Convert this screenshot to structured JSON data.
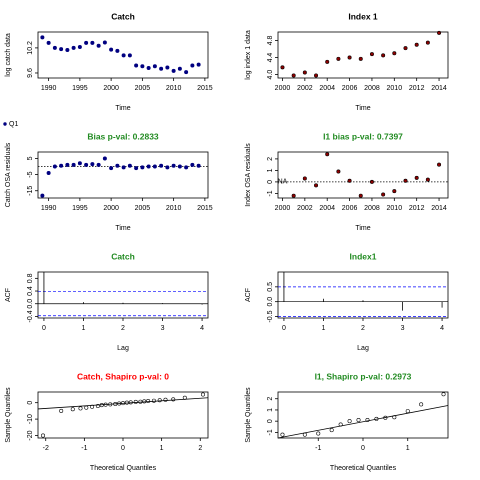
{
  "chart_data": [
    {
      "type": "scatter",
      "title": "Catch",
      "title_color": "#000000",
      "xlabel": "Time",
      "ylabel": "log catch data",
      "x": [
        1989,
        1990,
        1991,
        1992,
        1993,
        1994,
        1995,
        1996,
        1997,
        1998,
        1999,
        2000,
        2001,
        2002,
        2003,
        2004,
        2005,
        2006,
        2007,
        2008,
        2009,
        2010,
        2011,
        2012,
        2013,
        2014
      ],
      "series": [
        {
          "name": "Q1",
          "color": "#000080",
          "values": [
            10.45,
            10.32,
            10.2,
            10.17,
            10.15,
            10.2,
            10.22,
            10.32,
            10.32,
            10.25,
            10.33,
            10.16,
            10.13,
            10.02,
            10.02,
            9.78,
            9.76,
            9.72,
            9.76,
            9.7,
            9.73,
            9.65,
            9.7,
            9.62,
            9.78,
            9.8
          ]
        }
      ],
      "xlim": [
        1988.3,
        2015.5
      ],
      "ylim": [
        9.48,
        10.58
      ],
      "xticks": [
        1990,
        1995,
        2000,
        2005,
        2010,
        2015
      ],
      "yticks": [
        9.6,
        10.2
      ]
    },
    {
      "type": "scatter",
      "title": "Index 1",
      "title_color": "#000000",
      "xlabel": "Time",
      "ylabel": "log index 1 data",
      "x": [
        2000,
        2001,
        2002,
        2003,
        2004,
        2005,
        2006,
        2007,
        2008,
        2009,
        2010,
        2011,
        2012,
        2013,
        2014
      ],
      "values": [
        4.17,
        3.98,
        4.05,
        3.98,
        4.3,
        4.37,
        4.4,
        4.37,
        4.48,
        4.45,
        4.5,
        4.62,
        4.7,
        4.75,
        4.98
      ],
      "color": "#8b0000",
      "outline": "#000000",
      "xlim": [
        1999.6,
        2014.8
      ],
      "ylim": [
        3.92,
        5.0
      ],
      "xticks": [
        2000,
        2002,
        2004,
        2006,
        2008,
        2010,
        2012,
        2014
      ],
      "yticks": [
        {
          "value": 4.0,
          "label": "4.0"
        },
        4.4,
        4.8
      ]
    },
    {
      "type": "scatter",
      "title": "Bias p-val: 0.2833",
      "title_color": "#228b22",
      "xlabel": "Time",
      "ylabel": "Catch OSA residuals",
      "x": [
        1989,
        1990,
        1991,
        1992,
        1993,
        1994,
        1995,
        1996,
        1997,
        1998,
        1999,
        2000,
        2001,
        2002,
        2003,
        2004,
        2005,
        2006,
        2007,
        2008,
        2009,
        2010,
        2011,
        2012,
        2013,
        2014
      ],
      "values": [
        -18,
        -4,
        0,
        0.5,
        1,
        1,
        2,
        1,
        1.5,
        1,
        5,
        -1,
        0.5,
        -0.5,
        0.5,
        -1,
        -0.5,
        0,
        0,
        0.5,
        -0.5,
        0.5,
        0,
        -0.5,
        1,
        0.5
      ],
      "color": "#000080",
      "hline": 0,
      "xlim": [
        1988.3,
        2015.5
      ],
      "ylim": [
        -19.5,
        9
      ],
      "xticks": [
        1990,
        1995,
        2000,
        2005,
        2010,
        2015
      ],
      "yticks": [
        -15,
        -5,
        5
      ]
    },
    {
      "type": "scatter",
      "title": "I1 bias p-val: 0.7397",
      "title_color": "#228b22",
      "xlabel": "Time",
      "ylabel": "Index OSA residuals",
      "x": [
        2001,
        2002,
        2003,
        2004,
        2005,
        2006,
        2007,
        2008,
        2009,
        2010,
        2011,
        2012,
        2013,
        2014
      ],
      "values": [
        -1.2,
        0.3,
        -0.3,
        2.4,
        0.9,
        0.1,
        -1.2,
        0,
        -1.1,
        -0.8,
        0.1,
        0.35,
        0.2,
        1.5
      ],
      "color": "#8b0000",
      "outline": "#000000",
      "hline": 0,
      "annotations": [
        {
          "text": "NA",
          "x": 2000,
          "y": 0
        }
      ],
      "xlim": [
        1999.6,
        2014.8
      ],
      "ylim": [
        -1.4,
        2.6
      ],
      "xticks": [
        2000,
        2002,
        2004,
        2006,
        2008,
        2010,
        2012,
        2014
      ],
      "yticks": [
        -1,
        0,
        1,
        2
      ]
    },
    {
      "type": "bar",
      "title": "Catch",
      "title_color": "#228b22",
      "xlabel": "Lag",
      "ylabel": "ACF",
      "x": [
        0,
        1,
        2,
        3,
        4
      ],
      "values": [
        1,
        0.05,
        0.03,
        0.02,
        -0.03
      ],
      "color": "#000000",
      "hline": 0,
      "conf_limits": [
        -0.38,
        0.38
      ],
      "conf_color": "#0000ff",
      "xlim": [
        -0.15,
        4.15
      ],
      "ylim": [
        -0.45,
        1.0
      ],
      "xticks": [
        0,
        1,
        2,
        3,
        4
      ],
      "yticks": [
        -0.4,
        {
          "value": 0.0,
          "label": "0.0"
        },
        0.4,
        0.8
      ]
    },
    {
      "type": "bar",
      "title": "Index1",
      "title_color": "#228b22",
      "xlabel": "Lag",
      "ylabel": "ACF",
      "x": [
        0,
        1,
        2,
        3,
        4
      ],
      "values": [
        1,
        0.1,
        0.05,
        -0.3,
        -0.2
      ],
      "color": "#000000",
      "hline": 0,
      "conf_limits": [
        -0.5,
        0.5
      ],
      "conf_color": "#0000ff",
      "xlim": [
        -0.15,
        4.15
      ],
      "ylim": [
        -0.55,
        1.0
      ],
      "xticks": [
        0,
        1,
        2,
        3,
        4
      ],
      "yticks": [
        -0.5,
        {
          "value": 0.0,
          "label": "0.0"
        },
        0.5
      ]
    },
    {
      "type": "scatter",
      "title": "Catch, Shapiro p-val: 0",
      "title_color": "#ff0000",
      "xlabel": "Theoretical Quantiles",
      "ylabel": "Sample Quantiles",
      "x": [
        -2.07,
        -1.6,
        -1.3,
        -1.1,
        -0.95,
        -0.8,
        -0.65,
        -0.55,
        -0.45,
        -0.33,
        -0.2,
        -0.1,
        0,
        0.1,
        0.2,
        0.33,
        0.45,
        0.55,
        0.65,
        0.8,
        0.95,
        1.1,
        1.3,
        1.6,
        2.07
      ],
      "values": [
        -20,
        -5,
        -4,
        -3.5,
        -3,
        -2.5,
        -2,
        -1.5,
        -1.2,
        -1,
        -0.8,
        -0.5,
        -0.3,
        0,
        0.2,
        0.5,
        0.6,
        0.8,
        1,
        1.2,
        1.5,
        1.8,
        2,
        3,
        5
      ],
      "color": "none",
      "outline": "#000000",
      "refline": {
        "x": [
          -2.2,
          2.2
        ],
        "y": [
          -3.8,
          3.0
        ]
      },
      "xlim": [
        -2.2,
        2.2
      ],
      "ylim": [
        -21.5,
        6.5
      ],
      "xticks": [
        -2,
        -1,
        0,
        1,
        2
      ],
      "yticks": [
        -20,
        -10,
        0
      ]
    },
    {
      "type": "scatter",
      "title": "I1, Shapiro p-val: 0.2973",
      "title_color": "#228b22",
      "xlabel": "Theoretical Quantiles",
      "ylabel": "Sample Quantiles",
      "x": [
        -1.8,
        -1.3,
        -1.0,
        -0.7,
        -0.5,
        -0.3,
        -0.1,
        0.1,
        0.3,
        0.5,
        0.7,
        1.0,
        1.3,
        1.8
      ],
      "values": [
        -1.2,
        -1.2,
        -1.1,
        -0.8,
        -0.3,
        0,
        0.1,
        0.1,
        0.2,
        0.3,
        0.35,
        0.9,
        1.5,
        2.4
      ],
      "color": "none",
      "outline": "#000000",
      "refline": {
        "x": [
          -1.9,
          1.9
        ],
        "y": [
          -1.5,
          1.4
        ]
      },
      "xlim": [
        -1.9,
        1.9
      ],
      "ylim": [
        -1.5,
        2.6
      ],
      "xticks": [
        -1,
        0,
        1
      ],
      "yticks": [
        -1,
        0,
        1,
        2
      ]
    }
  ]
}
